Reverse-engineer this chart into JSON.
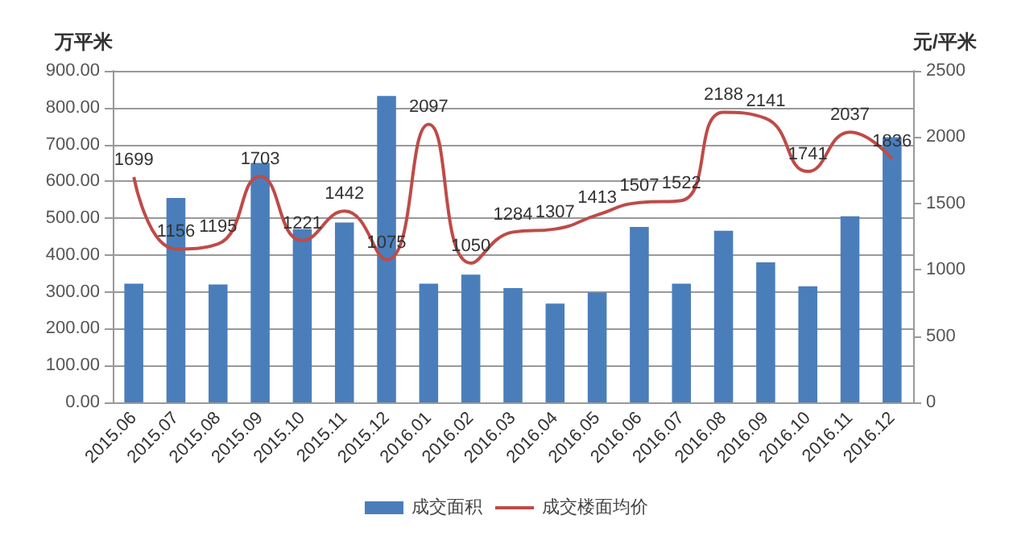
{
  "chart_data": {
    "type": "bar",
    "ylabel": "万平米",
    "y2label": "元/平米",
    "categories": [
      "2015.06",
      "2015.07",
      "2015.08",
      "2015.09",
      "2015.10",
      "2015.11",
      "2015.12",
      "2016.01",
      "2016.02",
      "2016.03",
      "2016.04",
      "2016.05",
      "2016.06",
      "2016.07",
      "2016.08",
      "2016.09",
      "2016.10",
      "2016.11",
      "2016.12"
    ],
    "series": [
      {
        "name": "成交面积",
        "color": "#4a7ebb",
        "values": [
          322,
          555,
          320,
          650,
          470,
          488,
          832,
          322,
          347,
          310,
          268,
          298,
          476,
          322,
          466,
          380,
          315,
          505,
          720
        ]
      },
      {
        "name": "成交楼面均价",
        "type": "line",
        "axis": "y2",
        "color": "#be4b48",
        "marker": "none",
        "values": [
          1699,
          1156,
          1195,
          1703,
          1221,
          1442,
          1075,
          2097,
          1050,
          1284,
          1307,
          1413,
          1507,
          1522,
          2188,
          2141,
          1741,
          2037,
          1836
        ],
        "value_labels": [
          "1699",
          "1156",
          "1195",
          "1703",
          "1221",
          "1442",
          "1075",
          "2097",
          "1050",
          "1284",
          "1307",
          "1413",
          "1507",
          "1522",
          "2188",
          "2141",
          "1741",
          "2037",
          "1836"
        ]
      }
    ],
    "ylim": [
      0,
      900
    ],
    "yticks": [
      {
        "value": 0,
        "label": "0.00"
      },
      {
        "value": 100,
        "label": "100.00"
      },
      {
        "value": 200,
        "label": "200.00"
      },
      {
        "value": 300,
        "label": "300.00"
      },
      {
        "value": 400,
        "label": "400.00"
      },
      {
        "value": 500,
        "label": "500.00"
      },
      {
        "value": 600,
        "label": "600.00"
      },
      {
        "value": 700,
        "label": "700.00"
      },
      {
        "value": 800,
        "label": "800.00"
      },
      {
        "value": 900,
        "label": "900.00"
      }
    ],
    "y2lim": [
      0,
      2500
    ],
    "y2ticks": [
      0,
      500,
      1000,
      1500,
      2000,
      2500
    ],
    "grid": "y",
    "legend": "bottom"
  }
}
